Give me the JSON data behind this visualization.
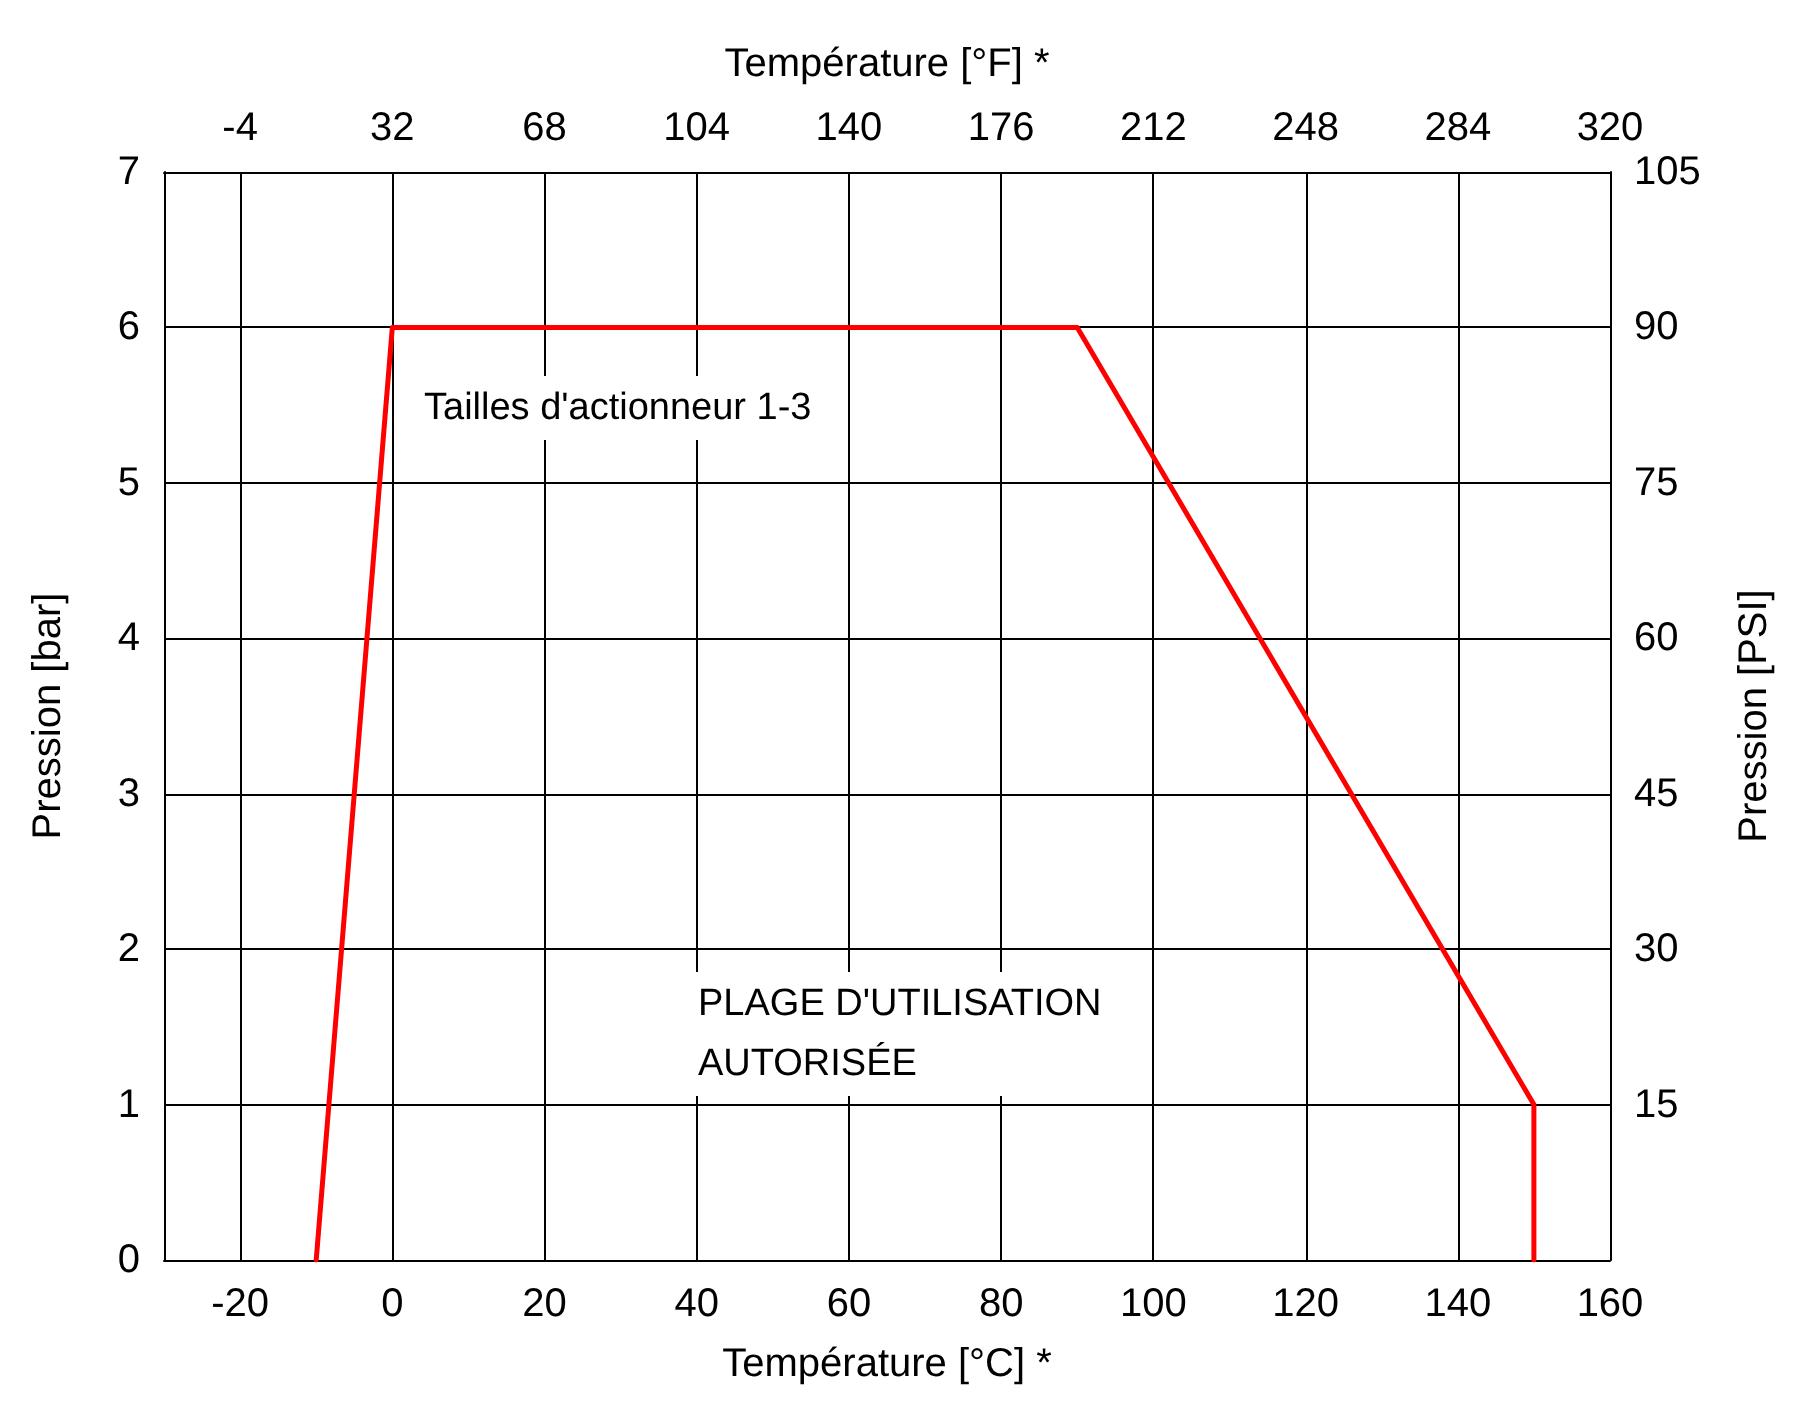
{
  "chart_data": {
    "type": "line",
    "x": [
      -10,
      0,
      90,
      150,
      150
    ],
    "series": [
      {
        "color": "#ff0000",
        "values": [
          0,
          6,
          6,
          1,
          0
        ]
      }
    ],
    "xlabel": "Température [°C] *",
    "x2label": "Température [°F] *",
    "ylabel": "Pression [bar]",
    "y2label": "Pression [PSI]",
    "xlim": [
      -30,
      160
    ],
    "xticks": [
      -20,
      0,
      20,
      40,
      60,
      80,
      100,
      120,
      140,
      160
    ],
    "x2lim": [
      -22,
      320
    ],
    "x2ticks": [
      -4,
      32,
      68,
      104,
      140,
      176,
      212,
      248,
      284,
      320
    ],
    "ylim": [
      0,
      7
    ],
    "yticks": [
      0,
      1,
      2,
      3,
      4,
      5,
      6,
      7
    ],
    "y2lim": [
      0,
      105
    ],
    "y2ticks": [
      15,
      30,
      45,
      60,
      75,
      90,
      105
    ],
    "annotations": [
      "Tailles d'actionneur 1-3",
      "PLAGE D'UTILISATION\nAUTORISÉE"
    ],
    "grid": true,
    "marker": "none",
    "line_style": "solid"
  }
}
